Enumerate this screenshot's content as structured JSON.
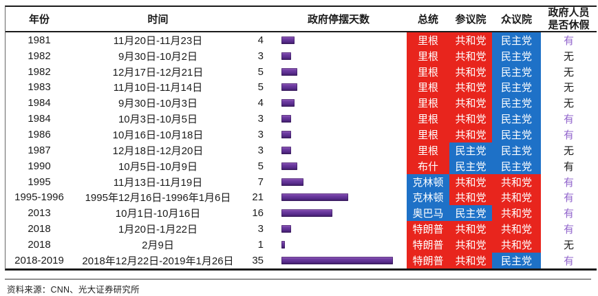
{
  "figure": {
    "source_note": "资料来源：CNN、光大证券研究所"
  },
  "table": {
    "headers": {
      "year": "年份",
      "time": "时间",
      "days": "政府停摆天数",
      "president": "总统",
      "senate": "参议院",
      "house": "众议院",
      "staff_line1": "政府人员",
      "staff_line2": "是否休假"
    },
    "rows": [
      {
        "year": "1981",
        "period": "11月20日-11月23日",
        "days": 4,
        "president": "里根",
        "president_party": "R",
        "senate": "共和党",
        "senate_party": "R",
        "house": "民主党",
        "house_party": "D",
        "furlough": "有",
        "furlough_style": "purple"
      },
      {
        "year": "1982",
        "period": "9月30日-10月2日",
        "days": 3,
        "president": "里根",
        "president_party": "R",
        "senate": "共和党",
        "senate_party": "R",
        "house": "民主党",
        "house_party": "D",
        "furlough": "无",
        "furlough_style": "black"
      },
      {
        "year": "1982",
        "period": "12月17日-12月21日",
        "days": 5,
        "president": "里根",
        "president_party": "R",
        "senate": "共和党",
        "senate_party": "R",
        "house": "民主党",
        "house_party": "D",
        "furlough": "无",
        "furlough_style": "black"
      },
      {
        "year": "1983",
        "period": "11月10日-11月14日",
        "days": 5,
        "president": "里根",
        "president_party": "R",
        "senate": "共和党",
        "senate_party": "R",
        "house": "民主党",
        "house_party": "D",
        "furlough": "无",
        "furlough_style": "black"
      },
      {
        "year": "1984",
        "period": "9月30日-10月3日",
        "days": 4,
        "president": "里根",
        "president_party": "R",
        "senate": "共和党",
        "senate_party": "R",
        "house": "民主党",
        "house_party": "D",
        "furlough": "无",
        "furlough_style": "black"
      },
      {
        "year": "1984",
        "period": "10月3日-10月5日",
        "days": 3,
        "president": "里根",
        "president_party": "R",
        "senate": "共和党",
        "senate_party": "R",
        "house": "民主党",
        "house_party": "D",
        "furlough": "有",
        "furlough_style": "purple"
      },
      {
        "year": "1986",
        "period": "10月16日-10月18日",
        "days": 3,
        "president": "里根",
        "president_party": "R",
        "senate": "共和党",
        "senate_party": "R",
        "house": "民主党",
        "house_party": "D",
        "furlough": "有",
        "furlough_style": "purple"
      },
      {
        "year": "1987",
        "period": "12月18日-12月20日",
        "days": 3,
        "president": "里根",
        "president_party": "R",
        "senate": "民主党",
        "senate_party": "D",
        "house": "民主党",
        "house_party": "D",
        "furlough": "无",
        "furlough_style": "black"
      },
      {
        "year": "1990",
        "period": "10月5日-10月9日",
        "days": 5,
        "president": "布什",
        "president_party": "R",
        "senate": "民主党",
        "senate_party": "D",
        "house": "民主党",
        "house_party": "D",
        "furlough": "有",
        "furlough_style": "black"
      },
      {
        "year": "1995",
        "period": "11月13日-11月19日",
        "days": 7,
        "president": "克林顿",
        "president_party": "D",
        "senate": "共和党",
        "senate_party": "R",
        "house": "共和党",
        "house_party": "R",
        "furlough": "有",
        "furlough_style": "purple"
      },
      {
        "year": "1995-1996",
        "period": "1995年12月16日-1996年1月6日",
        "days": 21,
        "president": "克林顿",
        "president_party": "D",
        "senate": "共和党",
        "senate_party": "R",
        "house": "共和党",
        "house_party": "R",
        "furlough": "有",
        "furlough_style": "purple"
      },
      {
        "year": "2013",
        "period": "10月1日-10月16日",
        "days": 16,
        "president": "奥巴马",
        "president_party": "D",
        "senate": "民主党",
        "senate_party": "D",
        "house": "共和党",
        "house_party": "R",
        "furlough": "有",
        "furlough_style": "purple"
      },
      {
        "year": "2018",
        "period": "1月20日-1月22日",
        "days": 3,
        "president": "特朗普",
        "president_party": "R",
        "senate": "共和党",
        "senate_party": "R",
        "house": "共和党",
        "house_party": "R",
        "furlough": "有",
        "furlough_style": "purple"
      },
      {
        "year": "2018",
        "period": "2月9日",
        "days": 1,
        "president": "特朗普",
        "president_party": "R",
        "senate": "共和党",
        "senate_party": "R",
        "house": "共和党",
        "house_party": "R",
        "furlough": "无",
        "furlough_style": "black"
      },
      {
        "year": "2018-2019",
        "period": "2018年12月22日-2019年1月26日",
        "days": 35,
        "president": "特朗普",
        "president_party": "R",
        "senate": "共和党",
        "senate_party": "R",
        "house": "民主党",
        "house_party": "D",
        "furlough": "有",
        "furlough_style": "purple"
      }
    ]
  },
  "colors": {
    "republican": "#e8251d",
    "democrat": "#1e71c7",
    "bar_main": "#5f3191",
    "furlough_purple": "#9265cc",
    "text_black": "#1a1a1a"
  },
  "chart_data": {
    "type": "bar",
    "orientation": "horizontal",
    "title": "政府停摆天数",
    "categories": [
      "1981",
      "1982",
      "1982",
      "1983",
      "1984",
      "1984",
      "1986",
      "1987",
      "1990",
      "1995",
      "1995-1996",
      "2013",
      "2018",
      "2018",
      "2018-2019"
    ],
    "values": [
      4,
      3,
      5,
      5,
      4,
      3,
      3,
      3,
      5,
      7,
      21,
      16,
      3,
      1,
      35
    ],
    "xlabel": "",
    "ylabel": "",
    "xlim": [
      0,
      35
    ],
    "grid": false,
    "legend": false,
    "bar_color": "#5f3191"
  }
}
